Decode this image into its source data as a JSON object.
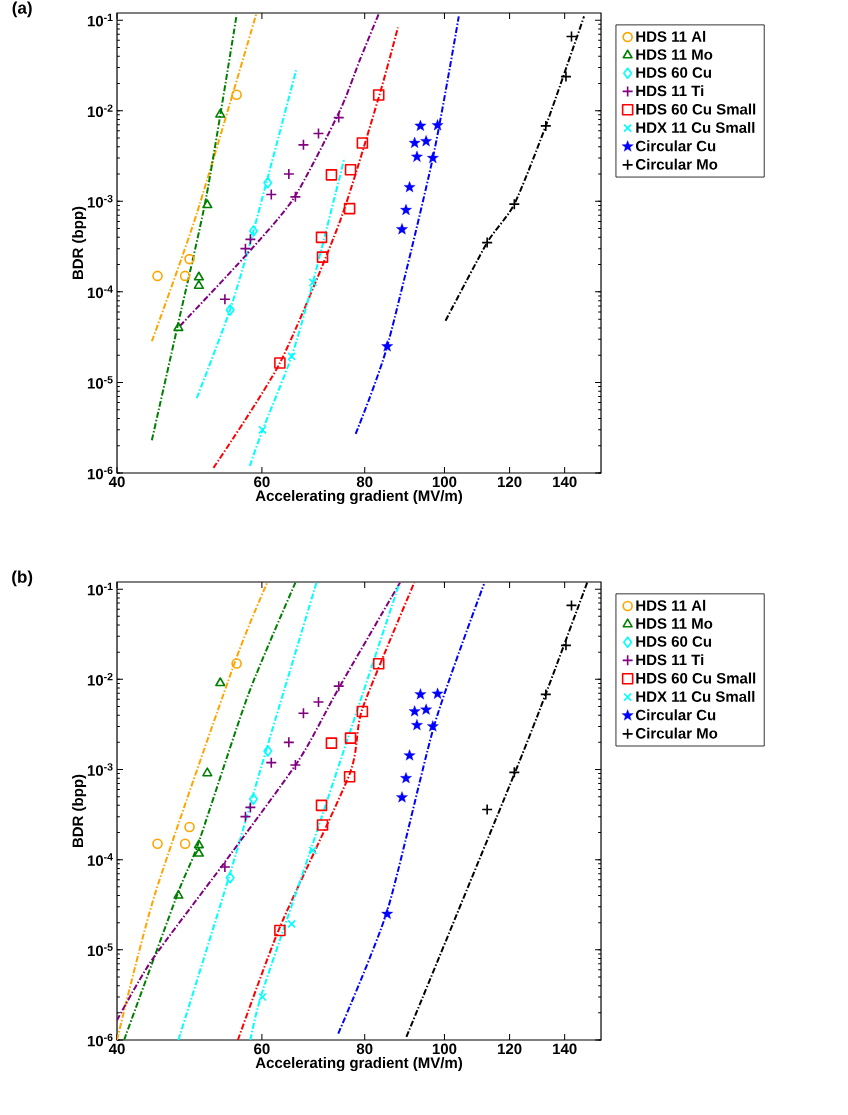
{
  "chart_data": [
    {
      "type": "scatter",
      "title": "(a)",
      "xlabel": "Accelerating gradient (MV/m)",
      "ylabel": "BDR (bpp)",
      "log": "xy",
      "legend": "top right",
      "xlim": [
        40,
        155
      ],
      "ylim": [
        1e-06,
        0.12
      ],
      "xticks": [
        40,
        60,
        80,
        100,
        120,
        140
      ],
      "yticks": [
        {
          "value": 1e-06,
          "label": "10$^{-6}$"
        },
        {
          "value": 1e-05,
          "label": "10$^{-5}$"
        },
        {
          "value": 0.0001,
          "label": "10$^{-4}$"
        },
        {
          "value": 0.001,
          "label": "10$^{-3}$"
        },
        {
          "value": 0.01,
          "label": "10$^{-2}$"
        },
        {
          "value": 0.1,
          "label": "10$^{-1}$"
        }
      ],
      "series": [
        {
          "name": "HDS 11 Al",
          "color": "#ffa500",
          "marker": "circle",
          "x": [
            44.8,
            48.4,
            49.0,
            55.9
          ],
          "values": [
            0.00015,
            0.00015,
            0.00023,
            0.015
          ]
        },
        {
          "name": "HDS 11 Mo",
          "color": "#008000",
          "marker": "triangle",
          "x": [
            47.5,
            50.3,
            50.3,
            51.5,
            53.4
          ],
          "values": [
            4e-05,
            0.000117,
            0.000145,
            0.00091,
            0.0091
          ]
        },
        {
          "name": "HDS 60 Cu",
          "color": "#00ffff",
          "marker": "diamond",
          "x": [
            54.9,
            58.6,
            61.0
          ],
          "values": [
            6.3e-05,
            0.00047,
            0.0016
          ]
        },
        {
          "name": "HDS 11 Ti",
          "color": "#800080",
          "marker": "cross",
          "x": [
            54.1,
            57.3,
            58.1,
            61.6,
            64.7,
            65.9,
            67.4,
            70.3,
            74.4
          ],
          "values": [
            8.3e-05,
            0.0003,
            0.00038,
            0.00119,
            0.002,
            0.00112,
            0.0042,
            0.0056,
            0.0084
          ]
        },
        {
          "name": "HDS 60 Cu Small",
          "color": "#ff0000",
          "marker": "square",
          "x": [
            63.1,
            70.9,
            71.1,
            72.9,
            76.7,
            76.9,
            79.5,
            83.2
          ],
          "values": [
            1.64e-05,
            0.0004,
            0.000242,
            0.00196,
            0.00083,
            0.00223,
            0.0044,
            0.0149
          ]
        },
        {
          "name": "HDX 11 Cu Small",
          "color": "#00ffff",
          "marker": "x",
          "x": [
            60.1,
            65.2,
            69.2
          ],
          "values": [
            3e-06,
            1.94e-05,
            0.000127
          ]
        },
        {
          "name": "Circular Cu",
          "color": "#0000ff",
          "marker": "star",
          "x": [
            85.2,
            88.8,
            89.8,
            90.7,
            92.0,
            92.6,
            93.5,
            95.0,
            96.8,
            98.1
          ],
          "values": [
            2.5e-05,
            0.00049,
            0.0008,
            0.00143,
            0.0044,
            0.0031,
            0.0068,
            0.0046,
            0.003,
            0.0069
          ]
        },
        {
          "name": "Circular Mo",
          "color": "#000000",
          "marker": "cross",
          "x": [
            112.7,
            121.6,
            132.8,
            140.5,
            142.7
          ],
          "values": [
            0.00035,
            0.00093,
            0.0068,
            0.0238,
            0.066
          ]
        },
        {
          "type": "line",
          "color": "#ffa500",
          "line_style": "dashdot",
          "x": [
            44.1,
            50.0,
            59.1
          ],
          "values": [
            2.85e-05,
            0.00073,
            0.119
          ]
        },
        {
          "type": "line",
          "color": "#008000",
          "line_style": "dashdot",
          "x": [
            44.1,
            47.5,
            51.4,
            55.9
          ],
          "values": [
            2.3e-06,
            4.6e-05,
            0.00117,
            0.114
          ]
        },
        {
          "type": "line",
          "color": "#00ffff",
          "line_style": "dashdot",
          "x": [
            50.0,
            54.8,
            58.6,
            66.1
          ],
          "values": [
            6.7e-06,
            6.1e-05,
            0.00047,
            0.029
          ]
        },
        {
          "type": "line",
          "color": "#800080",
          "line_style": "dashdot",
          "x": [
            47.7,
            57.3,
            65.6,
            74.6,
            78.9,
            83.2
          ],
          "values": [
            4.2e-05,
            0.00025,
            0.00108,
            0.0099,
            0.036,
            0.117
          ]
        },
        {
          "type": "line",
          "color": "#ff0000",
          "line_style": "dashdot",
          "x": [
            52.4,
            63.1,
            74.6,
            83.2,
            87.8
          ],
          "values": [
            1.14e-06,
            1.64e-05,
            0.00059,
            0.014,
            0.083
          ]
        },
        {
          "type": "line",
          "color": "#00ffff",
          "line_style": "dashdot",
          "x": [
            58.0,
            60.1,
            65.2,
            69.2,
            75.6
          ],
          "values": [
            1.2e-06,
            2.96e-06,
            1.94e-05,
            0.000127,
            0.003
          ]
        },
        {
          "type": "line",
          "color": "#0000ff",
          "line_style": "dashdot",
          "x": [
            78.0,
            85.2,
            96.8,
            104.1
          ],
          "values": [
            2.7e-06,
            2.5e-05,
            0.003,
            0.11
          ]
        },
        {
          "type": "line",
          "color": "#000000",
          "line_style": "dashdot",
          "x": [
            100.3,
            112.7,
            121.6,
            132.8,
            147.8
          ],
          "values": [
            4.8e-05,
            0.00035,
            0.00093,
            0.0068,
            0.11
          ]
        }
      ]
    },
    {
      "type": "scatter",
      "title": "(b)",
      "xlabel": "Accelerating gradient (MV/m)",
      "ylabel": "BDR (bpp)",
      "log": "xy",
      "legend": "top right",
      "xlim": [
        40,
        155
      ],
      "ylim": [
        1e-06,
        0.12
      ],
      "xticks": [
        40,
        60,
        80,
        100,
        120,
        140
      ],
      "yticks": [
        {
          "value": 1e-06,
          "label": "10$^{-6}$"
        },
        {
          "value": 1e-05,
          "label": "10$^{-5}$"
        },
        {
          "value": 0.0001,
          "label": "10$^{-4}$"
        },
        {
          "value": 0.001,
          "label": "10$^{-3}$"
        },
        {
          "value": 0.01,
          "label": "10$^{-2}$"
        },
        {
          "value": 0.1,
          "label": "10$^{-1}$"
        }
      ],
      "series": [
        {
          "name": "HDS 11 Al",
          "color": "#ffa500",
          "marker": "circle",
          "x": [
            44.8,
            48.4,
            49.0,
            55.9
          ],
          "values": [
            0.00015,
            0.00015,
            0.00023,
            0.015
          ]
        },
        {
          "name": "HDS 11 Mo",
          "color": "#008000",
          "marker": "triangle",
          "x": [
            47.5,
            50.3,
            50.3,
            51.5,
            53.4
          ],
          "values": [
            4e-05,
            0.000117,
            0.000145,
            0.00091,
            0.0091
          ]
        },
        {
          "name": "HDS 60 Cu",
          "color": "#00ffff",
          "marker": "diamond",
          "x": [
            54.9,
            58.6,
            61.0
          ],
          "values": [
            6.3e-05,
            0.00047,
            0.0016
          ]
        },
        {
          "name": "HDS 11 Ti",
          "color": "#800080",
          "marker": "cross",
          "x": [
            54.1,
            57.3,
            58.1,
            61.6,
            64.7,
            65.9,
            67.4,
            70.3,
            74.4
          ],
          "values": [
            8.3e-05,
            0.0003,
            0.00038,
            0.00119,
            0.002,
            0.00112,
            0.0042,
            0.0056,
            0.0084
          ]
        },
        {
          "name": "HDS 60 Cu Small",
          "color": "#ff0000",
          "marker": "square",
          "x": [
            63.1,
            70.9,
            71.1,
            72.9,
            76.7,
            76.9,
            79.5,
            83.2
          ],
          "values": [
            1.64e-05,
            0.0004,
            0.000242,
            0.00196,
            0.00083,
            0.00223,
            0.0044,
            0.0149
          ]
        },
        {
          "name": "HDX 11 Cu Small",
          "color": "#00ffff",
          "marker": "x",
          "x": [
            60.1,
            65.2,
            69.2
          ],
          "values": [
            3e-06,
            1.94e-05,
            0.000127
          ]
        },
        {
          "name": "Circular Cu",
          "color": "#0000ff",
          "marker": "star",
          "x": [
            85.2,
            88.8,
            89.8,
            90.7,
            92.0,
            92.6,
            93.5,
            95.0,
            96.8,
            98.1
          ],
          "values": [
            2.5e-05,
            0.00049,
            0.0008,
            0.00143,
            0.0044,
            0.0031,
            0.0068,
            0.0046,
            0.003,
            0.0069
          ]
        },
        {
          "name": "Circular Mo",
          "color": "#000000",
          "marker": "cross",
          "x": [
            112.7,
            121.6,
            132.8,
            140.5,
            142.7
          ],
          "values": [
            0.00036,
            0.00093,
            0.0068,
            0.0238,
            0.066
          ]
        },
        {
          "type": "line",
          "color": "#ffa500",
          "line_style": "dashdot",
          "x": [
            40,
            44.5,
            55.7,
            60.9
          ],
          "values": [
            1e-06,
            4.2e-05,
            0.016,
            0.118
          ]
        },
        {
          "type": "line",
          "color": "#008000",
          "line_style": "dashdot",
          "x": [
            40.8,
            47.4,
            50.2,
            57.8,
            65.9
          ],
          "values": [
            1e-06,
            4.2e-05,
            0.00015,
            0.0069,
            0.118
          ]
        },
        {
          "type": "line",
          "color": "#00ffff",
          "line_style": "dashdot",
          "x": [
            47.5,
            54.8,
            60.8,
            69.9
          ],
          "values": [
            1e-06,
            6.7e-05,
            0.0017,
            0.118
          ]
        },
        {
          "type": "line",
          "color": "#800080",
          "line_style": "dashdot",
          "x": [
            40.0,
            44.1,
            53.9,
            66.5,
            74.3,
            88.3
          ],
          "values": [
            1.66e-06,
            7.7e-06,
            9e-05,
            0.00126,
            0.0078,
            0.118
          ]
        },
        {
          "type": "line",
          "color": "#ff0000",
          "line_style": "dashdot",
          "x": [
            56.1,
            63.1,
            76.7,
            79.5,
            91.9
          ],
          "values": [
            1e-06,
            1.79e-05,
            0.00089,
            0.0047,
            0.118
          ]
        },
        {
          "type": "line",
          "color": "#00ffff",
          "line_style": "dashdot",
          "x": [
            58.1,
            60.0,
            69.0,
            88.1
          ],
          "values": [
            1e-06,
            3.3e-06,
            0.00014,
            0.114
          ]
        },
        {
          "type": "line",
          "color": "#0000ff",
          "line_style": "dashdot",
          "x": [
            74.3,
            85.2,
            97.3,
            111.7
          ],
          "values": [
            1.18e-06,
            2.7e-05,
            0.0032,
            0.114
          ]
        },
        {
          "type": "line",
          "color": "#000000",
          "line_style": "dashdot",
          "x": [
            89.9,
            121.6,
            132.8,
            149.1
          ],
          "values": [
            1.08e-06,
            0.00089,
            0.0069,
            0.118
          ]
        }
      ]
    }
  ]
}
